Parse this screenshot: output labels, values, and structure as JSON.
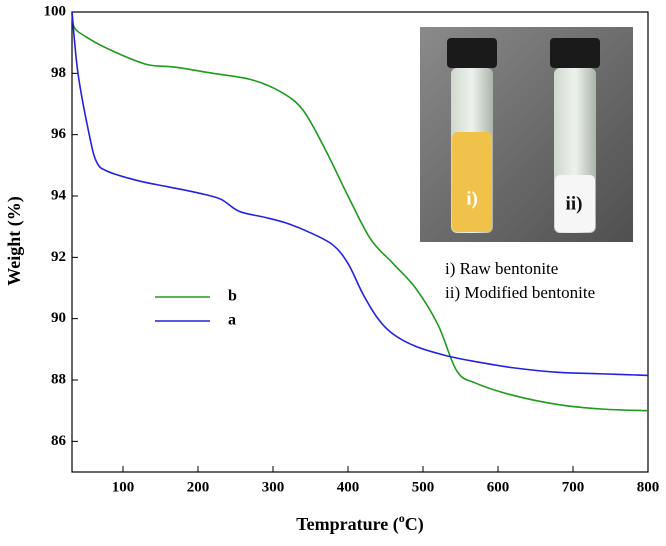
{
  "chart_data": {
    "type": "line",
    "y_label": "Weight  (%)",
    "x_label_parts": [
      "Temprature (",
      "o",
      "C)"
    ],
    "xlim": [
      32,
      800
    ],
    "ylim": [
      85,
      100
    ],
    "xticks": [
      100,
      200,
      300,
      400,
      500,
      600,
      700,
      800
    ],
    "yticks": [
      86,
      88,
      90,
      92,
      94,
      96,
      98,
      100
    ],
    "legend": "left",
    "series": [
      {
        "name": "b",
        "color": "#1e9a1e",
        "x": [
          32,
          35,
          50,
          80,
          130,
          170,
          220,
          270,
          310,
          340,
          370,
          400,
          430,
          460,
          490,
          520,
          545,
          570,
          620,
          680,
          740,
          800
        ],
        "values": [
          100,
          99.5,
          99.2,
          98.8,
          98.3,
          98.2,
          98.0,
          97.8,
          97.4,
          96.8,
          95.5,
          94.0,
          92.6,
          91.8,
          91.0,
          89.8,
          88.3,
          87.9,
          87.5,
          87.2,
          87.05,
          87.0
        ]
      },
      {
        "name": "a",
        "color": "#2222e0",
        "x": [
          32,
          40,
          55,
          65,
          80,
          120,
          160,
          200,
          230,
          255,
          290,
          320,
          350,
          380,
          400,
          420,
          440,
          460,
          490,
          530,
          570,
          620,
          680,
          740,
          800
        ],
        "values": [
          100,
          98.0,
          96.0,
          95.1,
          94.8,
          94.5,
          94.3,
          94.1,
          93.9,
          93.5,
          93.3,
          93.1,
          92.8,
          92.4,
          91.8,
          90.8,
          90.0,
          89.5,
          89.1,
          88.8,
          88.6,
          88.4,
          88.25,
          88.2,
          88.15
        ]
      }
    ],
    "inset": {
      "vial_labels": [
        "i)",
        "ii)"
      ],
      "captions": [
        "i)  Raw bentonite",
        "ii) Modified bentonite"
      ]
    }
  }
}
